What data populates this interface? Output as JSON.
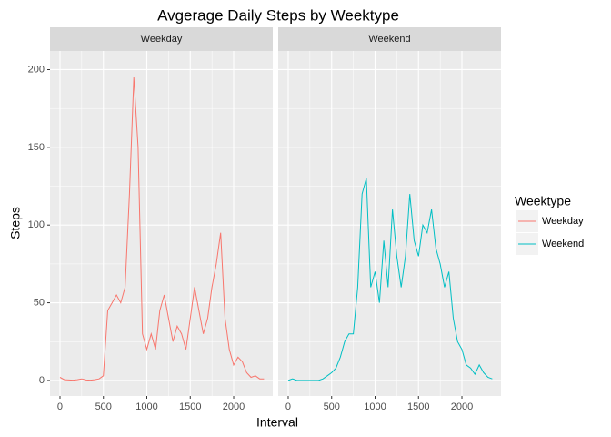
{
  "chart_data": {
    "type": "line",
    "title": "Avgerage Daily Steps by Weektype",
    "x_label": "Interval",
    "y_label": "Steps",
    "legend_title": "Weektype",
    "grid": true,
    "xlim": [
      -115,
      2450
    ],
    "ylim": [
      -10,
      212
    ],
    "xticks": [
      0,
      500,
      1000,
      1500,
      2000
    ],
    "yticks": [
      0,
      50,
      100,
      150,
      200
    ],
    "x": [
      0,
      50,
      100,
      150,
      200,
      250,
      300,
      350,
      400,
      450,
      500,
      550,
      600,
      650,
      700,
      750,
      800,
      850,
      900,
      950,
      1000,
      1050,
      1100,
      1150,
      1200,
      1250,
      1300,
      1350,
      1400,
      1450,
      1500,
      1550,
      1600,
      1650,
      1700,
      1750,
      1800,
      1850,
      1900,
      1950,
      2000,
      2050,
      2100,
      2150,
      2200,
      2250,
      2300,
      2350
    ],
    "series": [
      {
        "name": "Weekday",
        "color": "#F8766D",
        "values": [
          2,
          0.5,
          0.3,
          0.2,
          0.5,
          1,
          0.3,
          0.2,
          0.5,
          1,
          3,
          45,
          50,
          55,
          50,
          60,
          120,
          195,
          150,
          30,
          20,
          30,
          20,
          45,
          55,
          40,
          25,
          35,
          30,
          20,
          40,
          60,
          45,
          30,
          40,
          60,
          75,
          95,
          40,
          20,
          10,
          15,
          12,
          5,
          2,
          3,
          1,
          1
        ]
      },
      {
        "name": "Weekend",
        "color": "#00BFC4",
        "values": [
          0,
          1,
          0,
          0,
          0,
          0,
          0,
          0,
          1,
          3,
          5,
          8,
          15,
          25,
          30,
          30,
          60,
          120,
          130,
          60,
          70,
          50,
          90,
          60,
          110,
          80,
          60,
          80,
          120,
          90,
          80,
          100,
          95,
          110,
          85,
          75,
          60,
          70,
          40,
          25,
          20,
          10,
          8,
          4,
          10,
          5,
          2,
          1
        ]
      }
    ]
  }
}
